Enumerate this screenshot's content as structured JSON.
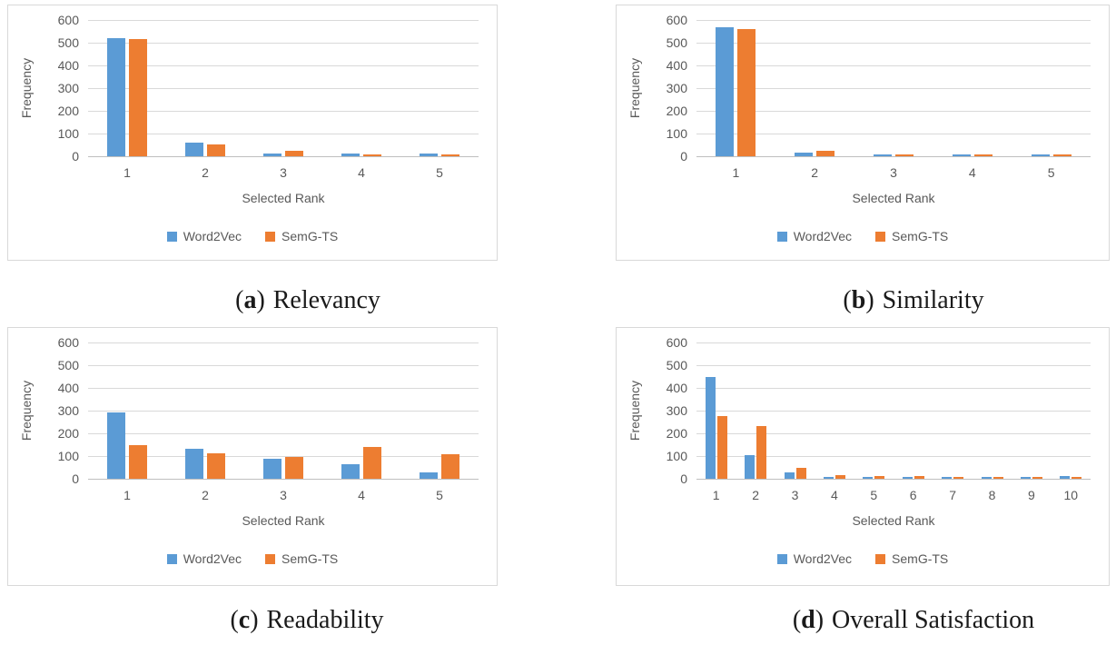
{
  "figure": {
    "caption_open": "(",
    "caption_close": ")",
    "panels": [
      {
        "letter": "a",
        "label": "Relevancy"
      },
      {
        "letter": "b",
        "label": "Similarity"
      },
      {
        "letter": "c",
        "label": "Readability"
      },
      {
        "letter": "d",
        "label": "Overall Satisfaction"
      }
    ]
  },
  "style": {
    "series_colors": {
      "Word2Vec": "#5B9BD5",
      "SemG-TS": "#ED7D31"
    },
    "axis_text_color": "#595959",
    "gridline_color": "#D9D9D9",
    "zero_axis_color": "#BFBFBF",
    "panel_border_color": "#D9D9D9"
  },
  "chart_data": [
    {
      "type": "bar",
      "title": "Relevancy",
      "categories": [
        "1",
        "2",
        "3",
        "4",
        "5"
      ],
      "series": [
        {
          "name": "Word2Vec",
          "color": "#5B9BD5",
          "values": [
            518,
            60,
            10,
            10,
            10
          ]
        },
        {
          "name": "SemG-TS",
          "color": "#ED7D31",
          "values": [
            516,
            52,
            25,
            6,
            6
          ]
        }
      ],
      "xlabel": "Selected Rank",
      "ylabel": "Frequency",
      "ylim": [
        0,
        600
      ],
      "yticks": [
        0,
        100,
        200,
        300,
        400,
        500,
        600
      ],
      "grid": true,
      "legend_position": "bottom"
    },
    {
      "type": "bar",
      "title": "Similarity",
      "categories": [
        "1",
        "2",
        "3",
        "4",
        "5"
      ],
      "series": [
        {
          "name": "Word2Vec",
          "color": "#5B9BD5",
          "values": [
            567,
            17,
            8,
            5,
            8
          ]
        },
        {
          "name": "SemG-TS",
          "color": "#ED7D31",
          "values": [
            561,
            24,
            4,
            5,
            4
          ]
        }
      ],
      "xlabel": "Selected Rank",
      "ylabel": "Frequency",
      "ylim": [
        0,
        600
      ],
      "yticks": [
        0,
        100,
        200,
        300,
        400,
        500,
        600
      ],
      "grid": true,
      "legend_position": "bottom"
    },
    {
      "type": "bar",
      "title": "Readability",
      "categories": [
        "1",
        "2",
        "3",
        "4",
        "5"
      ],
      "series": [
        {
          "name": "Word2Vec",
          "color": "#5B9BD5",
          "values": [
            290,
            133,
            89,
            62,
            28
          ]
        },
        {
          "name": "SemG-TS",
          "color": "#ED7D31",
          "values": [
            148,
            111,
            94,
            138,
            106
          ]
        }
      ],
      "xlabel": "Selected Rank",
      "ylabel": "Frequency",
      "ylim": [
        0,
        600
      ],
      "yticks": [
        0,
        100,
        200,
        300,
        400,
        500,
        600
      ],
      "grid": true,
      "legend_position": "bottom"
    },
    {
      "type": "bar",
      "title": "Overall Satisfaction",
      "categories": [
        "1",
        "2",
        "3",
        "4",
        "5",
        "6",
        "7",
        "8",
        "9",
        "10"
      ],
      "series": [
        {
          "name": "Word2Vec",
          "color": "#5B9BD5",
          "values": [
            447,
            103,
            27,
            7,
            8,
            7,
            7,
            7,
            7,
            12
          ]
        },
        {
          "name": "SemG-TS",
          "color": "#ED7D31",
          "values": [
            276,
            233,
            49,
            14,
            11,
            11,
            7,
            7,
            6,
            6
          ]
        }
      ],
      "xlabel": "Selected Rank",
      "ylabel": "Frequency",
      "ylim": [
        0,
        600
      ],
      "yticks": [
        0,
        100,
        200,
        300,
        400,
        500,
        600
      ],
      "grid": true,
      "legend_position": "bottom"
    }
  ]
}
